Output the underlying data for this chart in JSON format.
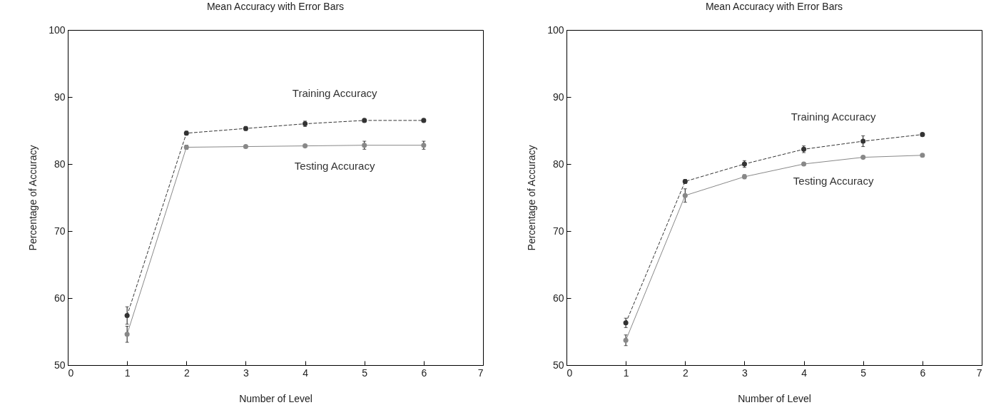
{
  "chart_data": [
    {
      "type": "line",
      "title": "Mean Accuracy with Error Bars",
      "xlabel": "Number of Level",
      "ylabel": "Percentage of Accuracy",
      "x": [
        1,
        2,
        3,
        4,
        5,
        6
      ],
      "series": [
        {
          "name": "Training Accuracy",
          "color": "#333333",
          "line_style": "dashed",
          "values": [
            57.4,
            84.6,
            85.3,
            86.0,
            86.5,
            86.5
          ],
          "errors": [
            1.3,
            0.3,
            0.3,
            0.4,
            0.2,
            0.2
          ]
        },
        {
          "name": "Testing Accuracy",
          "color": "#888888",
          "line_style": "solid",
          "values": [
            54.6,
            82.5,
            82.6,
            82.7,
            82.8,
            82.8
          ],
          "errors": [
            1.2,
            0.3,
            0.2,
            0.2,
            0.6,
            0.6
          ]
        }
      ],
      "xlim": [
        0,
        7
      ],
      "xticks": [
        0,
        1,
        2,
        3,
        4,
        5,
        6,
        7
      ],
      "ylim": [
        50,
        100
      ],
      "yticks": [
        50,
        60,
        70,
        80,
        90,
        100
      ],
      "marker": "circle",
      "grid": false
    },
    {
      "type": "line",
      "title": "Mean Accuracy with Error Bars",
      "xlabel": "Number of Level",
      "ylabel": "Percentage of Accuracy",
      "x": [
        1,
        2,
        3,
        4,
        5,
        6
      ],
      "series": [
        {
          "name": "Training Accuracy",
          "color": "#333333",
          "line_style": "dashed",
          "values": [
            56.3,
            77.4,
            80.0,
            82.2,
            83.4,
            84.4
          ],
          "errors": [
            0.7,
            0.3,
            0.5,
            0.5,
            0.8,
            0.2
          ]
        },
        {
          "name": "Testing Accuracy",
          "color": "#888888",
          "line_style": "solid",
          "values": [
            53.7,
            75.3,
            78.1,
            80.0,
            81.0,
            81.3
          ],
          "errors": [
            0.8,
            1.0,
            0.3,
            0.2,
            0.2,
            0.2
          ]
        }
      ],
      "xlim": [
        0,
        7
      ],
      "xticks": [
        0,
        1,
        2,
        3,
        4,
        5,
        6,
        7
      ],
      "ylim": [
        50,
        100
      ],
      "yticks": [
        50,
        60,
        70,
        80,
        90,
        100
      ],
      "marker": "circle",
      "grid": false
    }
  ]
}
